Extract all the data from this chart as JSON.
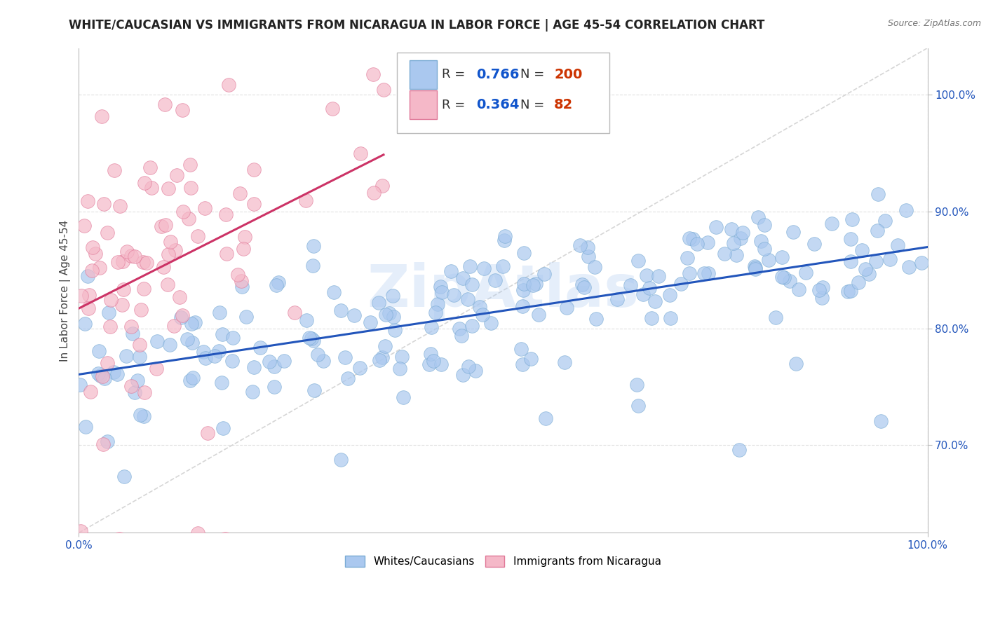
{
  "title": "WHITE/CAUCASIAN VS IMMIGRANTS FROM NICARAGUA IN LABOR FORCE | AGE 45-54 CORRELATION CHART",
  "source": "Source: ZipAtlas.com",
  "ylabel": "In Labor Force | Age 45-54",
  "xlim": [
    0.0,
    1.0
  ],
  "ylim": [
    0.625,
    1.04
  ],
  "yticks": [
    0.7,
    0.8,
    0.9,
    1.0
  ],
  "ytick_labels": [
    "70.0%",
    "80.0%",
    "90.0%",
    "100.0%"
  ],
  "xticks": [
    0.0,
    1.0
  ],
  "xtick_labels": [
    "0.0%",
    "100.0%"
  ],
  "legend_labels": [
    "Whites/Caucasians",
    "Immigrants from Nicaragua"
  ],
  "blue_R": 0.766,
  "blue_N": 200,
  "pink_R": 0.364,
  "pink_N": 82,
  "blue_color": "#aac8ef",
  "blue_edge": "#7aabd4",
  "pink_color": "#f5b8c8",
  "pink_edge": "#e07898",
  "blue_line_color": "#2255bb",
  "pink_line_color": "#cc3366",
  "ref_line_color": "#cccccc",
  "watermark": "ZipAtlas",
  "background_color": "#ffffff",
  "grid_color": "#cccccc",
  "title_fontsize": 12,
  "axis_label_fontsize": 11,
  "tick_fontsize": 11,
  "legend_R_color": "#1155cc",
  "legend_N_color": "#cc3300",
  "legend_text_color": "#333333"
}
